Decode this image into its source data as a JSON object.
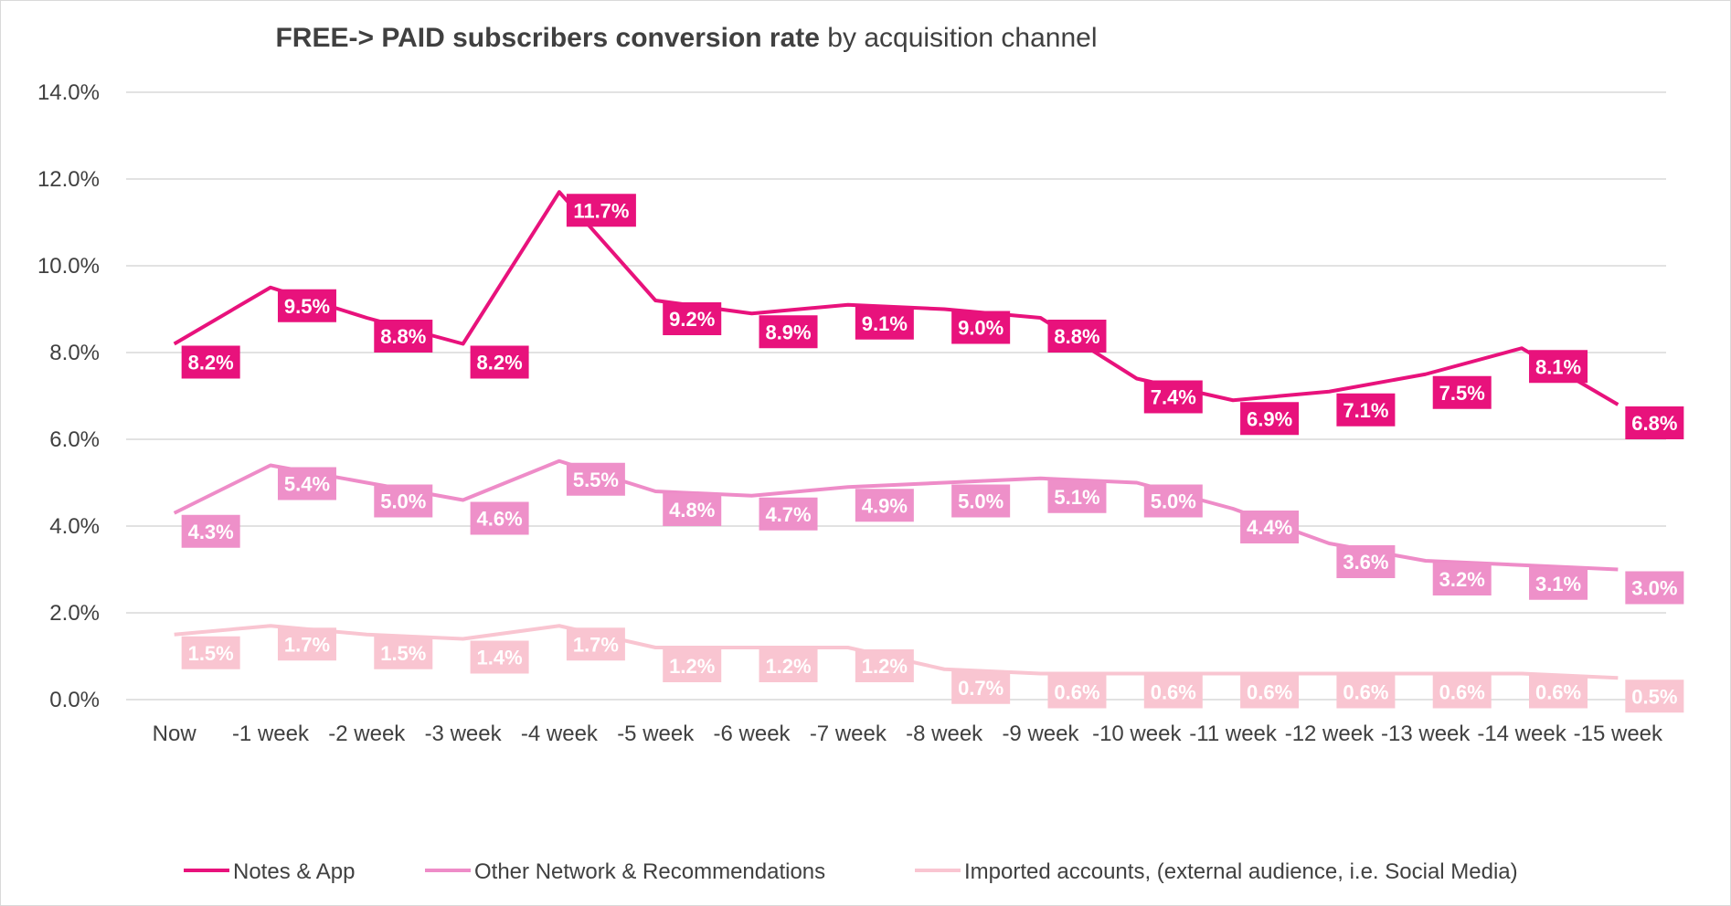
{
  "title": {
    "bold_part": "FREE-> PAID subscribers conversion rate",
    "regular_part": " by acquisition channel"
  },
  "chart_data": {
    "type": "line",
    "categories": [
      "Now",
      "-1 week",
      "-2 week",
      "-3 week",
      "-4 week",
      "-5 week",
      "-6 week",
      "-7 week",
      "-8 week",
      "-9 week",
      "-10 week",
      "-11 week",
      "-12 week",
      "-13 week",
      "-14 week",
      "-15 week"
    ],
    "ylim": [
      0,
      14
    ],
    "yticks": [
      0,
      2,
      4,
      6,
      8,
      10,
      12,
      14
    ],
    "ytick_labels": [
      "0.0%",
      "2.0%",
      "4.0%",
      "6.0%",
      "8.0%",
      "10.0%",
      "12.0%",
      "14.0%"
    ],
    "y_unit": "%",
    "grid": true,
    "legend_position": "bottom",
    "series": [
      {
        "name": "Notes & App",
        "color": "#e8127c",
        "label_color": "#e8127c",
        "values": [
          8.2,
          9.5,
          8.8,
          8.2,
          11.7,
          9.2,
          8.9,
          9.1,
          9.0,
          8.8,
          7.4,
          6.9,
          7.1,
          7.5,
          8.1,
          6.8
        ],
        "labels": [
          "8.2%",
          "9.5%",
          "8.8%",
          "8.2%",
          "11.7%",
          "9.2%",
          "8.9%",
          "9.1%",
          "9.0%",
          "8.8%",
          "7.4%",
          "6.9%",
          "7.1%",
          "7.5%",
          "8.1%",
          "6.8%"
        ]
      },
      {
        "name": "Other Network & Recommendations",
        "color": "#ee8cc8",
        "label_color": "#ee90c9",
        "values": [
          4.3,
          5.4,
          5.0,
          4.6,
          5.5,
          4.8,
          4.7,
          4.9,
          5.0,
          5.1,
          5.0,
          4.4,
          3.6,
          3.2,
          3.1,
          3.0
        ],
        "labels": [
          "4.3%",
          "5.4%",
          "5.0%",
          "4.6%",
          "5.5%",
          "4.8%",
          "4.7%",
          "4.9%",
          "5.0%",
          "5.1%",
          "5.0%",
          "4.4%",
          "3.6%",
          "3.2%",
          "3.1%",
          "3.0%"
        ]
      },
      {
        "name": "Imported accounts, (external audience, i.e. Social Media)",
        "color": "#f9c5d1",
        "label_color": "#f9c5d1",
        "values": [
          1.5,
          1.7,
          1.5,
          1.4,
          1.7,
          1.2,
          1.2,
          1.2,
          0.7,
          0.6,
          0.6,
          0.6,
          0.6,
          0.6,
          0.6,
          0.5
        ],
        "labels": [
          "1.5%",
          "1.7%",
          "1.5%",
          "1.4%",
          "1.7%",
          "1.2%",
          "1.2%",
          "1.2%",
          "0.7%",
          "0.6%",
          "0.6%",
          "0.6%",
          "0.6%",
          "0.6%",
          "0.6%",
          "0.5%"
        ]
      }
    ]
  }
}
